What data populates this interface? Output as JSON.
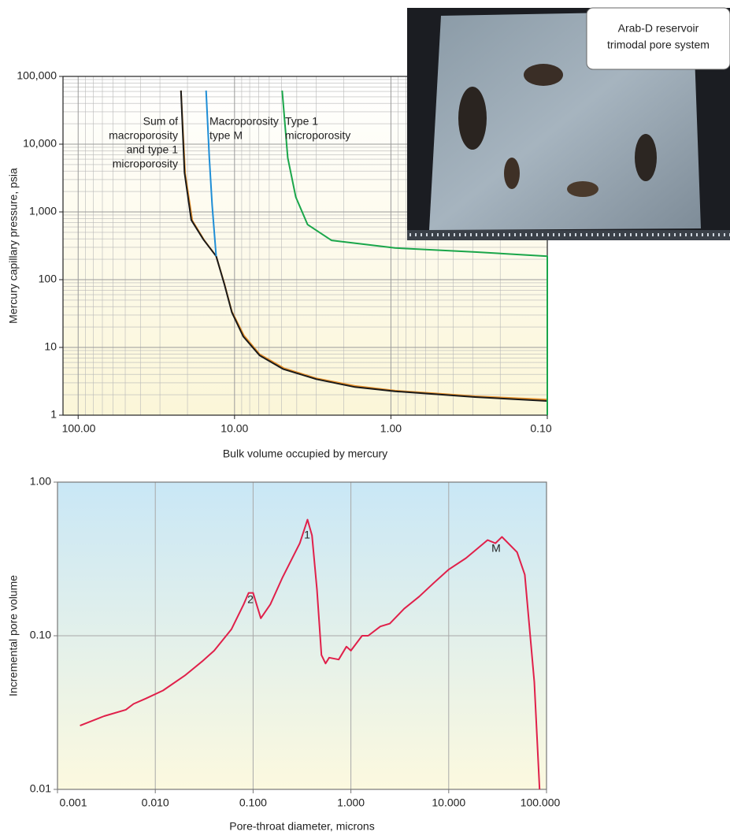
{
  "chart_data": [
    {
      "type": "line",
      "xlabel": "Bulk volume occupied by mercury",
      "ylabel": "Mercury capillary pressure, psia",
      "xscale": "log",
      "yscale": "log",
      "xlim": [
        125,
        0.1
      ],
      "ylim": [
        1,
        100000
      ],
      "xticks": [
        {
          "value": 100,
          "label": "100.00"
        },
        {
          "value": 10,
          "label": "10.00"
        },
        {
          "value": 1,
          "label": "1.00"
        },
        {
          "value": 0.1,
          "label": "0.10"
        }
      ],
      "yticks": [
        1,
        10,
        100,
        {
          "value": 1000,
          "label": "1,000"
        },
        {
          "value": 10000,
          "label": "10,000"
        },
        {
          "value": 100000,
          "label": "100,000"
        }
      ],
      "grid": true,
      "minor_grid": true,
      "series": [
        {
          "color": "#e8912a",
          "x": [
            22,
            20.7,
            18.6,
            15.6,
            13.1,
            11.6,
            10.4,
            8.7,
            6.9,
            4.8,
            3.0,
            1.7,
            0.94,
            0.53,
            0.29,
            0.1
          ],
          "values": [
            62000,
            3700,
            740,
            380,
            222,
            87,
            34,
            15,
            7.9,
            4.9,
            3.5,
            2.7,
            2.3,
            2.1,
            1.9,
            1.7
          ]
        },
        {
          "color": "#1a1a1a",
          "x": [
            22,
            20.9,
            18.9,
            15.8,
            13.1,
            11.6,
            10.4,
            8.8,
            6.9,
            4.9,
            3.0,
            1.7,
            0.94,
            0.53,
            0.29,
            0.1
          ],
          "values": [
            62000,
            3800,
            760,
            390,
            222,
            85,
            33,
            14.5,
            7.6,
            4.8,
            3.4,
            2.6,
            2.25,
            2.05,
            1.85,
            1.62
          ]
        },
        {
          "color": "#1f8ed6",
          "x": [
            15.2,
            14.5,
            13.9,
            13.1
          ],
          "values": [
            62000,
            6300,
            1260,
            222
          ]
        },
        {
          "color": "#1aa64a",
          "x": [
            4.96,
            4.57,
            4.06,
            3.41,
            2.4,
            0.94,
            0.29,
            0.1,
            0.1
          ],
          "values": [
            62000,
            6300,
            1660,
            650,
            380,
            293,
            256,
            222,
            1
          ]
        }
      ],
      "annotations": [
        {
          "lines": [
            "Sum of",
            "macroporosity",
            "and type 1",
            "microporosity"
          ]
        },
        {
          "lines": [
            "Macroporosity",
            "type M"
          ]
        },
        {
          "lines": [
            "Type 1",
            "microporosity"
          ]
        }
      ]
    },
    {
      "type": "line",
      "xlabel": "Pore-throat diameter, microns",
      "ylabel": "Incremental pore volume",
      "xscale": "log",
      "yscale": "log",
      "xlim": [
        0.001,
        100
      ],
      "ylim": [
        0.01,
        1
      ],
      "xticks": [
        0.001,
        {
          "value": 0.01,
          "label": "0.010"
        },
        {
          "value": 0.1,
          "label": "0.100"
        },
        {
          "value": 1,
          "label": "1.000"
        },
        {
          "value": 10,
          "label": "10.000"
        },
        {
          "value": 100,
          "label": "100.000"
        }
      ],
      "yticks": [
        {
          "value": 0.01,
          "label": "0.01"
        },
        {
          "value": 0.1,
          "label": "0.10"
        },
        {
          "value": 1,
          "label": "1.00"
        }
      ],
      "grid": true,
      "minor_grid": false,
      "color": "#e0204a",
      "x": [
        0.0017,
        0.003,
        0.005,
        0.006,
        0.008,
        0.012,
        0.02,
        0.03,
        0.04,
        0.06,
        0.08,
        0.09,
        0.1,
        0.12,
        0.15,
        0.2,
        0.3,
        0.36,
        0.4,
        0.45,
        0.5,
        0.55,
        0.6,
        0.75,
        0.9,
        1.0,
        1.3,
        1.5,
        2.0,
        2.5,
        3.5,
        5,
        7,
        10,
        15,
        25,
        30,
        35,
        50,
        60,
        75,
        85
      ],
      "values": [
        0.026,
        0.03,
        0.033,
        0.036,
        0.039,
        0.044,
        0.055,
        0.068,
        0.08,
        0.11,
        0.16,
        0.19,
        0.19,
        0.13,
        0.16,
        0.24,
        0.4,
        0.57,
        0.45,
        0.2,
        0.075,
        0.066,
        0.072,
        0.07,
        0.085,
        0.08,
        0.1,
        0.1,
        0.115,
        0.12,
        0.15,
        0.18,
        0.22,
        0.27,
        0.32,
        0.42,
        0.4,
        0.44,
        0.35,
        0.25,
        0.05,
        0.01
      ],
      "annotations": [
        {
          "lines": [
            "2"
          ]
        },
        {
          "lines": [
            "1"
          ]
        },
        {
          "lines": [
            "M"
          ]
        }
      ]
    }
  ],
  "photo": {
    "caption_lines": [
      "Arab-D reservoir",
      "trimodal pore system"
    ]
  }
}
